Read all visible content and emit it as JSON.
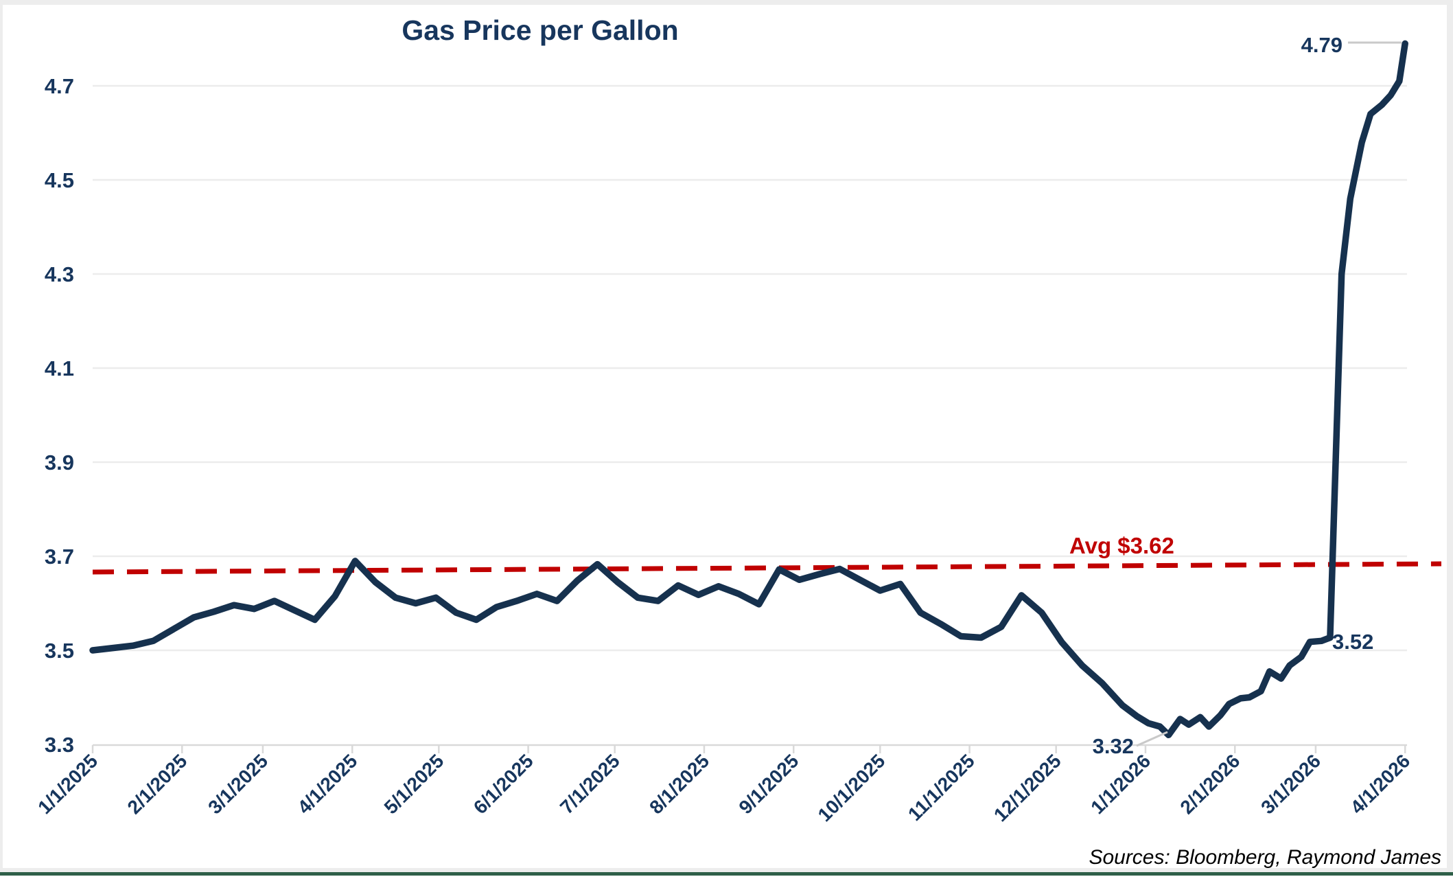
{
  "title": "Gas Price per Gallon",
  "source_note": "Sources: Bloomberg, Raymond James",
  "colors": {
    "line": "#16314e",
    "text": "#17365d",
    "avg_line": "#c00000",
    "grid": "#ececec",
    "axis": "#d9d9d9",
    "leader": "#c9c9c9",
    "source_text": "#000000",
    "window_edge": "#ededed",
    "bottom_bar": "#2e5f48",
    "background": "#ffffff"
  },
  "chart_data": {
    "type": "line",
    "title": "Gas Price per Gallon",
    "xlabel": "",
    "ylabel": "",
    "ylim": [
      3.3,
      4.85
    ],
    "yticks": [
      3.3,
      3.5,
      3.7,
      3.9,
      4.1,
      4.3,
      4.5,
      4.7
    ],
    "xticks": [
      "1/1/2025",
      "2/1/2025",
      "3/1/2025",
      "4/1/2025",
      "5/1/2025",
      "6/1/2025",
      "7/1/2025",
      "8/1/2025",
      "9/1/2025",
      "10/1/2025",
      "11/1/2025",
      "12/1/2025",
      "1/1/2026",
      "2/1/2026",
      "3/1/2026",
      "4/1/2026"
    ],
    "grid": "horizontal gridlines only, white background",
    "legend": "none",
    "avg_line": {
      "label": "Avg $3.62",
      "value": 3.62,
      "style": "dashed",
      "color": "#c00000"
    },
    "annotations": [
      {
        "label": "4.79",
        "date": "4/1/2026",
        "value": 4.79
      },
      {
        "label": "3.52",
        "date": "3/3/2026",
        "value": 3.52
      },
      {
        "label": "3.32",
        "date": "1/9/2026",
        "value": 3.32
      }
    ],
    "series": [
      {
        "name": "Gas Price per Gallon",
        "points": [
          [
            "1/1/2025",
            3.5
          ],
          [
            "1/8/2025",
            3.505
          ],
          [
            "1/15/2025",
            3.51
          ],
          [
            "1/22/2025",
            3.52
          ],
          [
            "1/29/2025",
            3.545
          ],
          [
            "2/5/2025",
            3.57
          ],
          [
            "2/12/2025",
            3.582
          ],
          [
            "2/19/2025",
            3.596
          ],
          [
            "2/26/2025",
            3.588
          ],
          [
            "3/5/2025",
            3.605
          ],
          [
            "3/12/2025",
            3.585
          ],
          [
            "3/19/2025",
            3.565
          ],
          [
            "3/26/2025",
            3.615
          ],
          [
            "4/2/2025",
            3.69
          ],
          [
            "4/9/2025",
            3.645
          ],
          [
            "4/16/2025",
            3.612
          ],
          [
            "4/23/2025",
            3.6
          ],
          [
            "4/30/2025",
            3.612
          ],
          [
            "5/7/2025",
            3.58
          ],
          [
            "5/14/2025",
            3.565
          ],
          [
            "5/21/2025",
            3.592
          ],
          [
            "5/28/2025",
            3.605
          ],
          [
            "6/4/2025",
            3.62
          ],
          [
            "6/11/2025",
            3.605
          ],
          [
            "6/18/2025",
            3.648
          ],
          [
            "6/25/2025",
            3.683
          ],
          [
            "7/2/2025",
            3.645
          ],
          [
            "7/9/2025",
            3.612
          ],
          [
            "7/16/2025",
            3.605
          ],
          [
            "7/23/2025",
            3.638
          ],
          [
            "7/30/2025",
            3.618
          ],
          [
            "8/6/2025",
            3.636
          ],
          [
            "8/13/2025",
            3.62
          ],
          [
            "8/20/2025",
            3.598
          ],
          [
            "8/27/2025",
            3.672
          ],
          [
            "9/3/2025",
            3.65
          ],
          [
            "9/10/2025",
            3.662
          ],
          [
            "9/17/2025",
            3.673
          ],
          [
            "9/24/2025",
            3.65
          ],
          [
            "10/1/2025",
            3.627
          ],
          [
            "10/8/2025",
            3.641
          ],
          [
            "10/15/2025",
            3.58
          ],
          [
            "10/22/2025",
            3.556
          ],
          [
            "10/29/2025",
            3.53
          ],
          [
            "11/5/2025",
            3.527
          ],
          [
            "11/12/2025",
            3.55
          ],
          [
            "11/19/2025",
            3.617
          ],
          [
            "11/26/2025",
            3.58
          ],
          [
            "12/3/2025",
            3.517
          ],
          [
            "12/10/2025",
            3.468
          ],
          [
            "12/17/2025",
            3.43
          ],
          [
            "12/24/2025",
            3.383
          ],
          [
            "12/29/2025",
            3.36
          ],
          [
            "1/2/2026",
            3.345
          ],
          [
            "1/6/2026",
            3.338
          ],
          [
            "1/9/2026",
            3.32
          ],
          [
            "1/13/2026",
            3.354
          ],
          [
            "1/16/2026",
            3.342
          ],
          [
            "1/20/2026",
            3.358
          ],
          [
            "1/23/2026",
            3.338
          ],
          [
            "1/27/2026",
            3.362
          ],
          [
            "1/30/2026",
            3.386
          ],
          [
            "2/3/2026",
            3.398
          ],
          [
            "2/6/2026",
            3.4
          ],
          [
            "2/10/2026",
            3.413
          ],
          [
            "2/13/2026",
            3.455
          ],
          [
            "2/17/2026",
            3.44
          ],
          [
            "2/20/2026",
            3.468
          ],
          [
            "2/24/2026",
            3.486
          ],
          [
            "2/27/2026",
            3.518
          ],
          [
            "3/3/2026",
            3.52
          ],
          [
            "3/6/2026",
            3.527
          ],
          [
            "3/10/2026",
            4.3
          ],
          [
            "3/13/2026",
            4.46
          ],
          [
            "3/17/2026",
            4.58
          ],
          [
            "3/20/2026",
            4.64
          ],
          [
            "3/24/2026",
            4.66
          ],
          [
            "3/27/2026",
            4.68
          ],
          [
            "3/30/2026",
            4.71
          ],
          [
            "4/1/2026",
            4.79
          ]
        ]
      }
    ]
  }
}
